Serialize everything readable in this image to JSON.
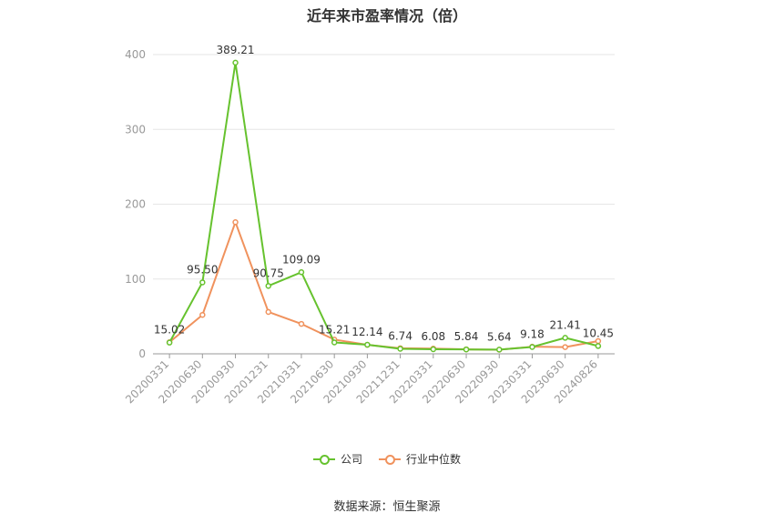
{
  "chart_data": {
    "type": "line",
    "title": "近年来市盈率情况（倍）",
    "categories": [
      "20200331",
      "20200630",
      "20200930",
      "20201231",
      "20210331",
      "20210630",
      "20210930",
      "20211231",
      "20220331",
      "20220630",
      "20220930",
      "20230331",
      "20230630",
      "20240826"
    ],
    "series": [
      {
        "name": "公司",
        "color": "#66c22e",
        "values": [
          15.02,
          95.5,
          389.21,
          90.75,
          109.09,
          15.21,
          12.14,
          6.74,
          6.08,
          5.84,
          5.64,
          9.18,
          21.41,
          10.45
        ],
        "labels": [
          "15.02",
          "95.50",
          "389.21",
          "90.75",
          "109.09",
          "15.21",
          "12.14",
          "6.74",
          "6.08",
          "5.84",
          "5.64",
          "9.18",
          "21.41",
          "10.45"
        ]
      },
      {
        "name": "行业中位数",
        "color": "#f0925d",
        "values": [
          15.5,
          52,
          176,
          56,
          40,
          19,
          12,
          7.5,
          7,
          6,
          5.5,
          9.5,
          9,
          17
        ]
      }
    ],
    "yticks": [
      0,
      100,
      200,
      300,
      400
    ],
    "ylim": [
      0,
      400
    ],
    "grid": true,
    "legend_position": "bottom"
  },
  "legend": {
    "items": [
      {
        "label": "公司",
        "color": "#66c22e"
      },
      {
        "label": "行业中位数",
        "color": "#f0925d"
      }
    ]
  },
  "source": "数据来源：恒生聚源"
}
